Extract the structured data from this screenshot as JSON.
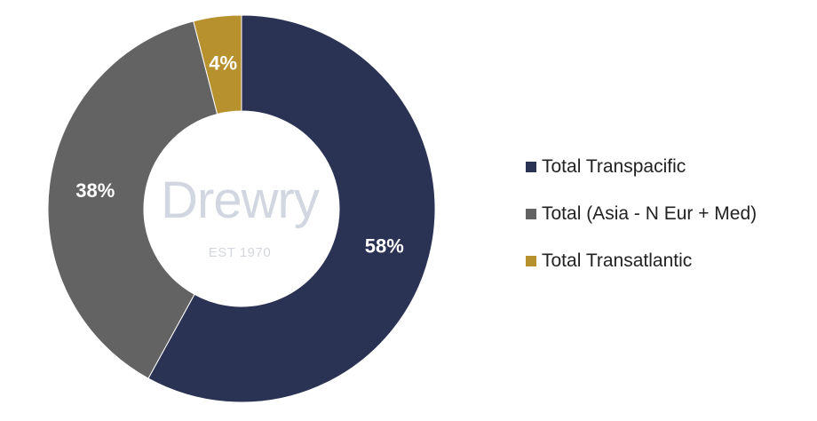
{
  "chart_data": {
    "type": "pie",
    "variant": "donut",
    "categories": [
      "Total Transpacific",
      "Total (Asia - N Eur + Med)",
      "Total Transatlantic"
    ],
    "values": [
      58,
      38,
      4
    ],
    "labels": [
      "58%",
      "38%",
      "4%"
    ],
    "colors": [
      "#2b3354",
      "#636363",
      "#b8912f"
    ],
    "legend_placement": "right"
  },
  "watermark": {
    "logo_text": "Drewry",
    "est_text": "EST 1970"
  }
}
